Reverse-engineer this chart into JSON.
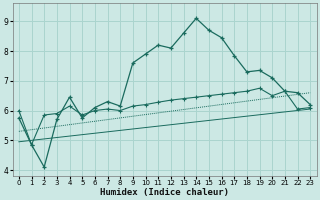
{
  "xlabel": "Humidex (Indice chaleur)",
  "xlim": [
    -0.5,
    23.5
  ],
  "ylim": [
    3.8,
    9.6
  ],
  "yticks": [
    4,
    5,
    6,
    7,
    8,
    9
  ],
  "xticks": [
    0,
    1,
    2,
    3,
    4,
    5,
    6,
    7,
    8,
    9,
    10,
    11,
    12,
    13,
    14,
    15,
    16,
    17,
    18,
    19,
    20,
    21,
    22,
    23
  ],
  "bg_color": "#cce8e4",
  "grid_color": "#aad4ce",
  "line_color": "#1a6b5e",
  "curve1_x": [
    0,
    1,
    2,
    3,
    4,
    5,
    6,
    7,
    8,
    9,
    10,
    11,
    12,
    13,
    14,
    15,
    16,
    17,
    18,
    19,
    20,
    21,
    22,
    23
  ],
  "curve1_y": [
    5.75,
    4.85,
    4.1,
    5.7,
    6.45,
    5.75,
    6.1,
    6.3,
    6.15,
    7.6,
    7.9,
    8.2,
    8.1,
    8.6,
    9.1,
    8.7,
    8.45,
    7.85,
    7.3,
    7.35,
    7.1,
    6.65,
    6.6,
    6.2
  ],
  "curve2_x": [
    0,
    1,
    2,
    3,
    4,
    5,
    6,
    7,
    8,
    9,
    10,
    11,
    12,
    13,
    14,
    15,
    16,
    17,
    18,
    19,
    20,
    21,
    22,
    23
  ],
  "curve2_y": [
    6.0,
    4.85,
    5.85,
    5.9,
    6.15,
    5.85,
    6.0,
    6.05,
    6.0,
    6.15,
    6.2,
    6.28,
    6.35,
    6.4,
    6.45,
    6.5,
    6.55,
    6.6,
    6.65,
    6.75,
    6.5,
    6.65,
    6.05,
    6.1
  ],
  "curve3_x": [
    0,
    23
  ],
  "curve3_y": [
    5.3,
    6.6
  ],
  "curve4_x": [
    0,
    23
  ],
  "curve4_y": [
    4.95,
    6.05
  ]
}
